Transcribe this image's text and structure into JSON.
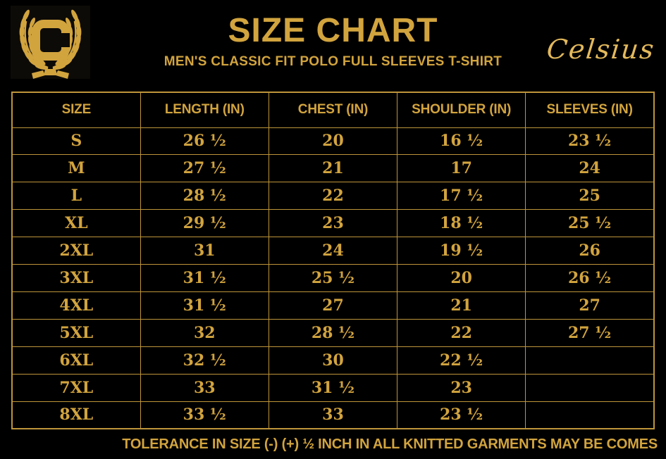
{
  "brand": {
    "logo_letter": "C",
    "brand_name": "Celsius"
  },
  "header": {
    "title": "SIZE CHART",
    "subtitle": "MEN'S CLASSIC FIT POLO FULL SLEEVES T-SHIRT"
  },
  "colors": {
    "background": "#000000",
    "gold_text": "#D2A43E",
    "gold_border": "#BE953A",
    "brand_script_gold": "#E3B95C"
  },
  "chart_data": {
    "type": "table",
    "title": "SIZE CHART",
    "subtitle": "MEN'S CLASSIC FIT POLO FULL SLEEVES T-SHIRT",
    "columns": [
      "SIZE",
      "LENGTH (IN)",
      "CHEST (IN)",
      "SHOULDER (IN)",
      "SLEEVES (IN)"
    ],
    "rows": [
      [
        "S",
        "26 ½",
        "20",
        "16 ½",
        "23 ½"
      ],
      [
        "M",
        "27 ½",
        "21",
        "17",
        "24"
      ],
      [
        "L",
        "28 ½",
        "22",
        "17 ½",
        "25"
      ],
      [
        "XL",
        "29 ½",
        "23",
        "18 ½",
        "25 ½"
      ],
      [
        "2XL",
        "31",
        "24",
        "19 ½",
        "26"
      ],
      [
        "3XL",
        "31 ½",
        "25 ½",
        "20",
        "26 ½"
      ],
      [
        "4XL",
        "31 ½",
        "27",
        "21",
        "27"
      ],
      [
        "5XL",
        "32",
        "28 ½",
        "22",
        "27 ½"
      ],
      [
        "6XL",
        "32 ½",
        "30",
        "22 ½",
        ""
      ],
      [
        "7XL",
        "33",
        "31 ½",
        "23",
        ""
      ],
      [
        "8XL",
        "33 ½",
        "33",
        "23 ½",
        ""
      ]
    ]
  },
  "footer": {
    "note": "TOLERANCE IN SIZE (-) (+)  ½ INCH IN ALL KNITTED GARMENTS MAY BE COMES"
  }
}
